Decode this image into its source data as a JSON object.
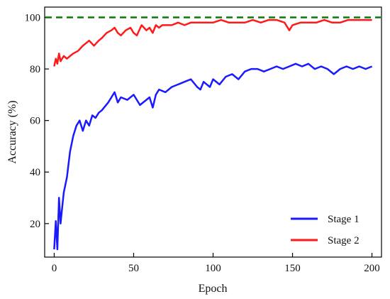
{
  "chart_data": {
    "type": "line",
    "title": "",
    "xlabel": "Epoch",
    "ylabel": "Accuracy (%)",
    "xlim": [
      -6,
      206
    ],
    "ylim": [
      7,
      104
    ],
    "xticks": [
      0,
      50,
      100,
      150,
      200
    ],
    "yticks": [
      20,
      40,
      60,
      80,
      100
    ],
    "grid": false,
    "legend_position": "bottom-right",
    "reference_line": {
      "y": 100,
      "color": "#0a7a0a",
      "style": "dashed"
    },
    "series": [
      {
        "name": "Stage 1",
        "color": "#1a1aff",
        "x": [
          0,
          1,
          2,
          3,
          4,
          5,
          6,
          8,
          10,
          12,
          14,
          16,
          18,
          20,
          22,
          24,
          26,
          28,
          30,
          34,
          38,
          40,
          42,
          46,
          50,
          54,
          58,
          60,
          62,
          64,
          66,
          70,
          74,
          78,
          82,
          86,
          90,
          92,
          94,
          98,
          100,
          104,
          108,
          112,
          116,
          120,
          124,
          128,
          132,
          136,
          140,
          144,
          148,
          152,
          156,
          160,
          164,
          168,
          172,
          176,
          180,
          184,
          188,
          192,
          196,
          200
        ],
        "values": [
          10,
          21,
          10,
          30,
          20,
          26,
          32,
          38,
          48,
          54,
          58,
          60,
          56,
          60,
          58,
          62,
          61,
          63,
          64,
          67,
          71,
          67,
          69,
          68,
          70,
          66,
          68,
          69,
          65,
          70,
          72,
          71,
          73,
          74,
          75,
          76,
          73,
          72,
          75,
          73,
          76,
          74,
          77,
          78,
          76,
          79,
          80,
          80,
          79,
          80,
          81,
          80,
          81,
          82,
          81,
          82,
          80,
          81,
          80,
          78,
          80,
          81,
          80,
          81,
          80,
          81
        ]
      },
      {
        "name": "Stage 2",
        "color": "#ff1a1a",
        "x": [
          0,
          1,
          2,
          3,
          4,
          6,
          8,
          10,
          12,
          15,
          18,
          20,
          22,
          25,
          28,
          30,
          33,
          36,
          38,
          40,
          42,
          45,
          48,
          50,
          52,
          55,
          58,
          60,
          62,
          64,
          66,
          68,
          70,
          74,
          78,
          82,
          86,
          90,
          95,
          100,
          105,
          110,
          115,
          120,
          125,
          130,
          135,
          140,
          145,
          148,
          150,
          155,
          160,
          165,
          170,
          175,
          180,
          185,
          190,
          195,
          200
        ],
        "values": [
          81,
          84,
          82,
          86,
          83,
          85,
          84,
          85,
          86,
          87,
          89,
          90,
          91,
          89,
          91,
          92,
          94,
          95,
          96,
          94,
          93,
          95,
          96,
          94,
          93,
          97,
          95,
          96,
          94,
          97,
          96,
          97,
          97,
          97,
          98,
          97,
          98,
          98,
          98,
          98,
          99,
          98,
          98,
          98,
          99,
          98,
          99,
          99,
          98,
          95,
          97,
          98,
          98,
          98,
          99,
          98,
          98,
          99,
          99,
          99,
          99
        ]
      }
    ]
  }
}
